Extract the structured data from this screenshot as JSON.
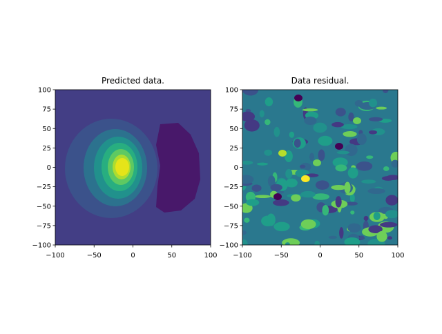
{
  "chart_data": [
    {
      "type": "contour",
      "title": "Predicted data.",
      "xlim": [
        -100,
        100
      ],
      "ylim": [
        -100,
        100
      ],
      "xticks": [
        {
          "value": -100,
          "label": "−100"
        },
        {
          "value": -50,
          "label": "−50"
        },
        0,
        50,
        100
      ],
      "yticks": [
        {
          "value": -100,
          "label": "−100"
        },
        {
          "value": -75,
          "label": "−75"
        },
        {
          "value": -50,
          "label": "−50"
        },
        {
          "value": -25,
          "label": "−25"
        },
        0,
        25,
        50,
        75,
        100
      ]
    },
    {
      "type": "contour",
      "title": "Data residual.",
      "xlim": [
        -100,
        100
      ],
      "ylim": [
        -100,
        100
      ],
      "xticks": [
        {
          "value": -100,
          "label": "−100"
        },
        {
          "value": -50,
          "label": "−50"
        },
        0,
        50,
        100
      ],
      "yticks": [
        {
          "value": -100,
          "label": "−100"
        },
        {
          "value": -75,
          "label": "−75"
        },
        {
          "value": -50,
          "label": "−50"
        },
        {
          "value": -25,
          "label": "−25"
        },
        0,
        25,
        50,
        75,
        100
      ]
    }
  ]
}
